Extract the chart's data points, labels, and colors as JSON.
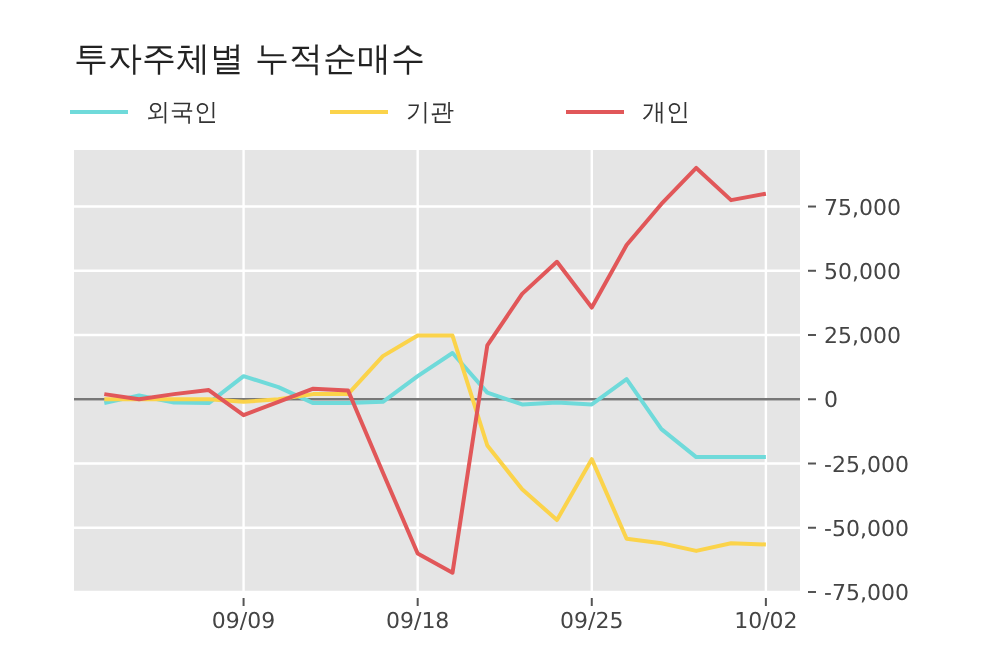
{
  "chart_data": {
    "type": "line",
    "title": "투자주체별 누적순매수",
    "categories": [
      null,
      null,
      null,
      null,
      "09/09",
      null,
      null,
      null,
      null,
      "09/18",
      null,
      null,
      null,
      null,
      "09/25",
      null,
      null,
      null,
      null,
      "10/02"
    ],
    "series": [
      {
        "name": "외국인",
        "color": "#6fdada",
        "values": [
          -1500,
          1500,
          -1300,
          -1500,
          9000,
          4700,
          -1500,
          -1500,
          -1000,
          9000,
          18000,
          2600,
          -2000,
          -1300,
          -2000,
          7800,
          -11600,
          -22500,
          -22500,
          -22500
        ]
      },
      {
        "name": "기관",
        "color": "#fbd34a",
        "values": [
          0,
          0,
          0,
          0,
          -1000,
          0,
          2000,
          2000,
          16800,
          24800,
          24800,
          -18000,
          -35000,
          -47000,
          -23300,
          -54300,
          -56000,
          -59000,
          -56000,
          -56500
        ]
      },
      {
        "name": "개인",
        "color": "#e15759",
        "values": [
          2000,
          0,
          2000,
          3600,
          -6200,
          -1000,
          4100,
          3400,
          -28500,
          -60000,
          -67500,
          21000,
          41000,
          53500,
          35700,
          60000,
          76000,
          90000,
          77500,
          80000
        ]
      }
    ],
    "ylim": [
      -75000,
      97000
    ],
    "yticks": [
      {
        "value": -75000,
        "label": "-75,000"
      },
      {
        "value": -50000,
        "label": "-50,000"
      },
      {
        "value": -25000,
        "label": "-25,000"
      },
      0,
      {
        "value": 25000,
        "label": "25,000"
      },
      {
        "value": 50000,
        "label": "50,000"
      },
      {
        "value": 75000,
        "label": "75,000"
      }
    ],
    "ref_lines": [
      {
        "axis": "y",
        "value": 0,
        "color": "#777777"
      }
    ],
    "grid": true,
    "legend": "top left",
    "marker": "none",
    "line_style": "solid"
  }
}
